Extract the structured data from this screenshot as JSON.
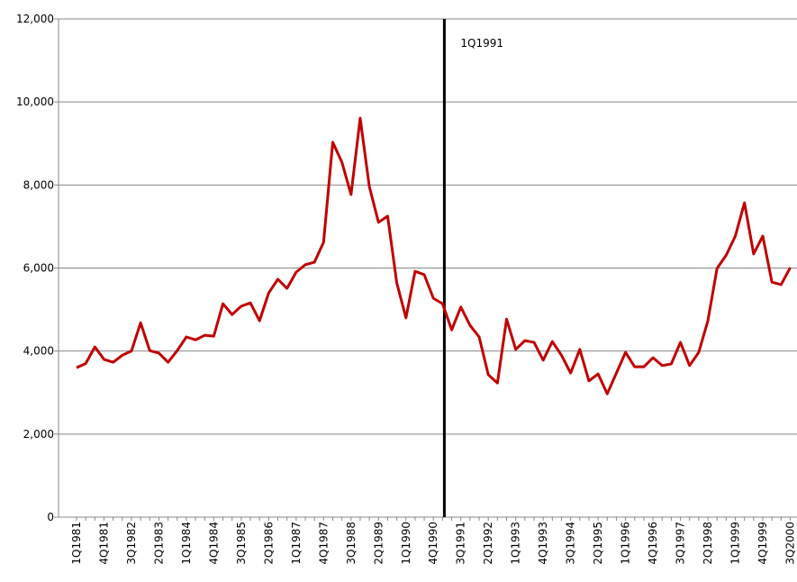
{
  "chart_data": {
    "type": "line",
    "categories": [
      "1Q1981",
      null,
      null,
      "4Q1981",
      null,
      null,
      "3Q1982",
      null,
      null,
      "2Q1983",
      null,
      null,
      "1Q1984",
      null,
      null,
      "4Q1984",
      null,
      null,
      "3Q1985",
      null,
      null,
      "2Q1986",
      null,
      null,
      "1Q1987",
      null,
      null,
      "4Q1987",
      null,
      null,
      "3Q1988",
      null,
      null,
      "2Q1989",
      null,
      null,
      "1Q1990",
      null,
      null,
      "4Q1990",
      null,
      null,
      "3Q1991",
      null,
      null,
      "2Q1992",
      null,
      null,
      "1Q1993",
      null,
      null,
      "4Q1993",
      null,
      null,
      "3Q1994",
      null,
      null,
      "2Q1995",
      null,
      null,
      "1Q1996",
      null,
      null,
      "4Q1996",
      null,
      null,
      "3Q1997",
      null,
      null,
      "2Q1998",
      null,
      null,
      "1Q1999",
      null,
      null,
      "4Q1999",
      null,
      null,
      "3Q2000"
    ],
    "values": [
      3600,
      3700,
      4100,
      3800,
      3730,
      3900,
      4000,
      4680,
      4010,
      3950,
      3730,
      4010,
      4340,
      4270,
      4380,
      4360,
      5140,
      4880,
      5080,
      5160,
      4730,
      5400,
      5730,
      5510,
      5900,
      6080,
      6140,
      6620,
      9030,
      8550,
      7770,
      9610,
      7960,
      7100,
      7250,
      5640,
      4800,
      5920,
      5840,
      5270,
      5140,
      4510,
      5060,
      4620,
      4340,
      3430,
      3230,
      4770,
      4040,
      4250,
      4210,
      3780,
      4230,
      3900,
      3470,
      4040,
      3280,
      3450,
      2970,
      3470,
      3970,
      3620,
      3620,
      3840,
      3650,
      3690,
      4210,
      3650,
      3970,
      4730,
      5990,
      6310,
      6770,
      7570,
      6340,
      6770,
      5660,
      5600,
      6010
    ],
    "color": "#c00000",
    "ylim": [
      0,
      12000
    ],
    "yticks": [
      0,
      {
        "value": 2000,
        "label": "2,000"
      },
      {
        "value": 4000,
        "label": "4,000"
      },
      {
        "value": 6000,
        "label": "6,000"
      },
      {
        "value": 8000,
        "label": "8,000"
      },
      {
        "value": 10000,
        "label": "10,000"
      },
      {
        "value": 12000,
        "label": "12,000"
      }
    ],
    "grid": true,
    "annotation": "1Q1991"
  }
}
